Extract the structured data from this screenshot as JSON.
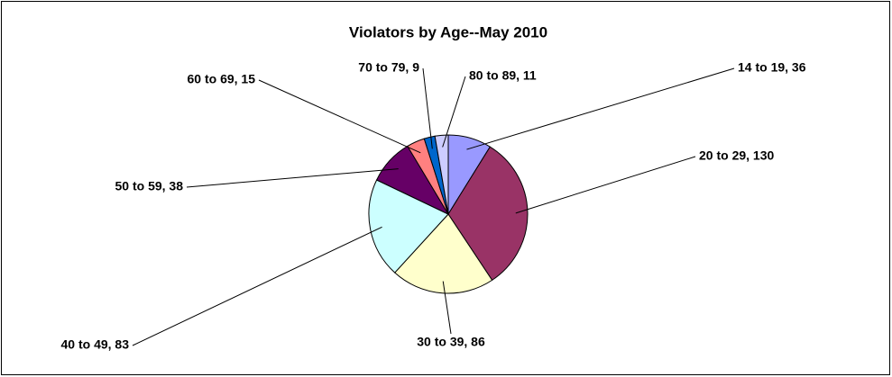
{
  "chart_data": {
    "type": "pie",
    "title": "Violators by Age--May 2010",
    "values": [
      36,
      130,
      86,
      83,
      38,
      15,
      9,
      11
    ],
    "value_labels": [
      "14 to 19, 36",
      "20 to 29, 130",
      "30 to 39, 86",
      "40 to 49, 83",
      "50 to 59, 38",
      "60 to 69, 15",
      "70 to 79, 9",
      "80 to 89, 11"
    ],
    "colors": [
      "#9999ff",
      "#993366",
      "#ffffcc",
      "#ccffff",
      "#660066",
      "#ff8080",
      "#0066cc",
      "#ccccff"
    ]
  }
}
